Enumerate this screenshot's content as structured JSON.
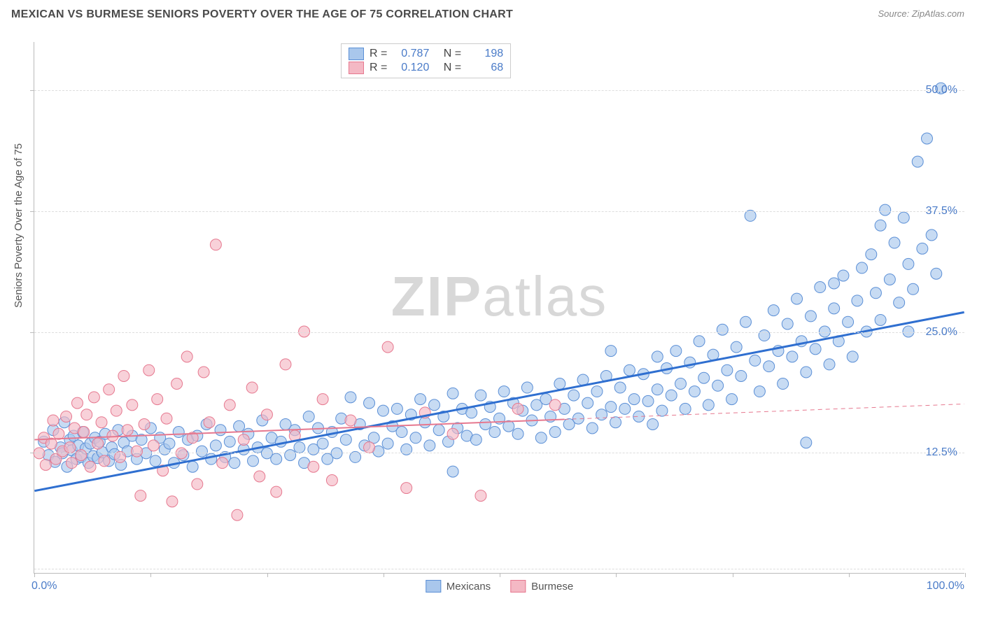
{
  "header": {
    "title": "MEXICAN VS BURMESE SENIORS POVERTY OVER THE AGE OF 75 CORRELATION CHART",
    "source_prefix": "Source: ",
    "source_name": "ZipAtlas.com"
  },
  "watermark": {
    "text1": "ZIP",
    "text2": "atlas"
  },
  "chart": {
    "type": "scatter",
    "background_color": "#ffffff",
    "grid_color": "#dddddd",
    "axis_color": "#bbbbbb",
    "ylabel": "Seniors Poverty Over the Age of 75",
    "ylabel_color": "#555555",
    "ylabel_fontsize": 15,
    "tick_label_color": "#4a7bc8",
    "tick_label_fontsize": 16,
    "xlim": [
      0,
      100
    ],
    "ylim": [
      0,
      55
    ],
    "x_axis_label_left": "0.0%",
    "x_axis_label_right": "100.0%",
    "x_tick_positions": [
      0,
      12.5,
      25,
      37.5,
      50,
      62.5,
      75,
      87.5,
      100
    ],
    "y_ticks": [
      {
        "v": 12.5,
        "label": "12.5%"
      },
      {
        "v": 25.0,
        "label": "25.0%"
      },
      {
        "v": 37.5,
        "label": "37.5%"
      },
      {
        "v": 50.0,
        "label": "50.0%"
      }
    ],
    "y_gridlines": [
      0.5,
      12.5,
      25.0,
      37.5,
      50.0
    ],
    "series": [
      {
        "name": "Mexicans",
        "marker_fill": "#a9c7ec",
        "marker_stroke": "#5b8fd6",
        "marker_opacity": 0.65,
        "marker_radius": 8,
        "trend_color": "#2f6fd0",
        "trend_width": 3,
        "trend_dash": "none",
        "trend": {
          "x1": 0,
          "y1": 8.5,
          "x2": 100,
          "y2": 27.0
        },
        "R": "0.787",
        "N": "198",
        "points": [
          [
            1,
            13.6
          ],
          [
            1.5,
            12.2
          ],
          [
            2,
            14.8
          ],
          [
            2.2,
            11.5
          ],
          [
            2.8,
            13.0
          ],
          [
            3,
            12.4
          ],
          [
            3.2,
            15.6
          ],
          [
            3.5,
            11.0
          ],
          [
            3.8,
            13.8
          ],
          [
            4,
            12.7
          ],
          [
            4.2,
            14.2
          ],
          [
            4.5,
            11.8
          ],
          [
            4.7,
            13.2
          ],
          [
            5,
            12.0
          ],
          [
            5.2,
            14.6
          ],
          [
            5.5,
            12.9
          ],
          [
            5.8,
            11.4
          ],
          [
            6,
            13.4
          ],
          [
            6.3,
            12.1
          ],
          [
            6.5,
            14.0
          ],
          [
            6.8,
            11.9
          ],
          [
            7,
            13.6
          ],
          [
            7.3,
            12.5
          ],
          [
            7.6,
            14.4
          ],
          [
            8,
            11.6
          ],
          [
            8.3,
            13.0
          ],
          [
            8.6,
            12.3
          ],
          [
            9,
            14.8
          ],
          [
            9.3,
            11.2
          ],
          [
            9.6,
            13.5
          ],
          [
            10,
            12.6
          ],
          [
            10.5,
            14.2
          ],
          [
            11,
            11.8
          ],
          [
            11.5,
            13.8
          ],
          [
            12,
            12.4
          ],
          [
            12.5,
            15.0
          ],
          [
            13,
            11.6
          ],
          [
            13.5,
            14.0
          ],
          [
            14,
            12.8
          ],
          [
            14.5,
            13.4
          ],
          [
            15,
            11.4
          ],
          [
            15.5,
            14.6
          ],
          [
            16,
            12.2
          ],
          [
            16.5,
            13.8
          ],
          [
            17,
            11.0
          ],
          [
            17.5,
            14.2
          ],
          [
            18,
            12.6
          ],
          [
            18.5,
            15.4
          ],
          [
            19,
            11.8
          ],
          [
            19.5,
            13.2
          ],
          [
            20,
            14.8
          ],
          [
            20.5,
            12.0
          ],
          [
            21,
            13.6
          ],
          [
            21.5,
            11.4
          ],
          [
            22,
            15.2
          ],
          [
            22.5,
            12.8
          ],
          [
            23,
            14.4
          ],
          [
            23.5,
            11.6
          ],
          [
            24,
            13.0
          ],
          [
            24.5,
            15.8
          ],
          [
            25,
            12.4
          ],
          [
            25.5,
            14.0
          ],
          [
            26,
            11.8
          ],
          [
            26.5,
            13.6
          ],
          [
            27,
            15.4
          ],
          [
            27.5,
            12.2
          ],
          [
            28,
            14.8
          ],
          [
            28.5,
            13.0
          ],
          [
            29,
            11.4
          ],
          [
            29.5,
            16.2
          ],
          [
            30,
            12.8
          ],
          [
            30.5,
            15.0
          ],
          [
            31,
            13.4
          ],
          [
            31.5,
            11.8
          ],
          [
            32,
            14.6
          ],
          [
            32.5,
            12.4
          ],
          [
            33,
            16.0
          ],
          [
            33.5,
            13.8
          ],
          [
            34,
            18.2
          ],
          [
            34.5,
            12.0
          ],
          [
            35,
            15.4
          ],
          [
            35.5,
            13.2
          ],
          [
            36,
            17.6
          ],
          [
            36.5,
            14.0
          ],
          [
            37,
            12.6
          ],
          [
            37.5,
            16.8
          ],
          [
            38,
            13.4
          ],
          [
            38.5,
            15.2
          ],
          [
            39,
            17.0
          ],
          [
            39.5,
            14.6
          ],
          [
            40,
            12.8
          ],
          [
            40.5,
            16.4
          ],
          [
            41,
            14.0
          ],
          [
            41.5,
            18.0
          ],
          [
            42,
            15.6
          ],
          [
            42.5,
            13.2
          ],
          [
            43,
            17.4
          ],
          [
            43.5,
            14.8
          ],
          [
            44,
            16.2
          ],
          [
            44.5,
            13.6
          ],
          [
            45,
            18.6
          ],
          [
            45,
            10.5
          ],
          [
            45.5,
            15.0
          ],
          [
            46,
            17.0
          ],
          [
            46.5,
            14.2
          ],
          [
            47,
            16.6
          ],
          [
            47.5,
            13.8
          ],
          [
            48,
            18.4
          ],
          [
            48.5,
            15.4
          ],
          [
            49,
            17.2
          ],
          [
            49.5,
            14.6
          ],
          [
            50,
            16.0
          ],
          [
            50.5,
            18.8
          ],
          [
            51,
            15.2
          ],
          [
            51.5,
            17.6
          ],
          [
            52,
            14.4
          ],
          [
            52.5,
            16.8
          ],
          [
            53,
            19.2
          ],
          [
            53.5,
            15.8
          ],
          [
            54,
            17.4
          ],
          [
            54.5,
            14.0
          ],
          [
            55,
            18.0
          ],
          [
            55.5,
            16.2
          ],
          [
            56,
            14.6
          ],
          [
            56.5,
            19.6
          ],
          [
            57,
            17.0
          ],
          [
            57.5,
            15.4
          ],
          [
            58,
            18.4
          ],
          [
            58.5,
            16.0
          ],
          [
            59,
            20.0
          ],
          [
            59.5,
            17.6
          ],
          [
            60,
            15.0
          ],
          [
            60.5,
            18.8
          ],
          [
            61,
            16.4
          ],
          [
            61.5,
            20.4
          ],
          [
            62,
            17.2
          ],
          [
            62,
            23.0
          ],
          [
            62.5,
            15.6
          ],
          [
            63,
            19.2
          ],
          [
            63.5,
            17.0
          ],
          [
            64,
            21.0
          ],
          [
            64.5,
            18.0
          ],
          [
            65,
            16.2
          ],
          [
            65.5,
            20.6
          ],
          [
            66,
            17.8
          ],
          [
            66.5,
            15.4
          ],
          [
            67,
            22.4
          ],
          [
            67,
            19.0
          ],
          [
            67.5,
            16.8
          ],
          [
            68,
            21.2
          ],
          [
            68.5,
            18.4
          ],
          [
            69,
            23.0
          ],
          [
            69.5,
            19.6
          ],
          [
            70,
            17.0
          ],
          [
            70.5,
            21.8
          ],
          [
            71,
            18.8
          ],
          [
            71.5,
            24.0
          ],
          [
            72,
            20.2
          ],
          [
            72.5,
            17.4
          ],
          [
            73,
            22.6
          ],
          [
            73.5,
            19.4
          ],
          [
            74,
            25.2
          ],
          [
            74.5,
            21.0
          ],
          [
            75,
            18.0
          ],
          [
            75.5,
            23.4
          ],
          [
            76,
            20.4
          ],
          [
            76.5,
            26.0
          ],
          [
            77,
            37.0
          ],
          [
            77.5,
            22.0
          ],
          [
            78,
            18.8
          ],
          [
            78.5,
            24.6
          ],
          [
            79,
            21.4
          ],
          [
            79.5,
            27.2
          ],
          [
            80,
            23.0
          ],
          [
            80.5,
            19.6
          ],
          [
            81,
            25.8
          ],
          [
            81.5,
            22.4
          ],
          [
            82,
            28.4
          ],
          [
            82.5,
            24.0
          ],
          [
            83,
            20.8
          ],
          [
            83,
            13.5
          ],
          [
            83.5,
            26.6
          ],
          [
            84,
            23.2
          ],
          [
            84.5,
            29.6
          ],
          [
            85,
            25.0
          ],
          [
            85.5,
            21.6
          ],
          [
            86,
            30.0
          ],
          [
            86,
            27.4
          ],
          [
            86.5,
            24.0
          ],
          [
            87,
            30.8
          ],
          [
            87.5,
            26.0
          ],
          [
            88,
            22.4
          ],
          [
            88.5,
            28.2
          ],
          [
            89,
            31.6
          ],
          [
            89.5,
            25.0
          ],
          [
            90,
            33.0
          ],
          [
            90.5,
            29.0
          ],
          [
            91,
            36.0
          ],
          [
            91,
            26.2
          ],
          [
            91.5,
            37.6
          ],
          [
            92,
            30.4
          ],
          [
            92.5,
            34.2
          ],
          [
            93,
            28.0
          ],
          [
            93.5,
            36.8
          ],
          [
            94,
            32.0
          ],
          [
            94,
            25.0
          ],
          [
            94.5,
            29.4
          ],
          [
            95,
            42.6
          ],
          [
            95.5,
            33.6
          ],
          [
            96,
            45.0
          ],
          [
            96.5,
            35.0
          ],
          [
            97,
            31.0
          ],
          [
            97.5,
            50.2
          ]
        ]
      },
      {
        "name": "Burmese",
        "marker_fill": "#f4b8c4",
        "marker_stroke": "#e6788f",
        "marker_opacity": 0.65,
        "marker_radius": 8,
        "trend_color": "#e6788f",
        "trend_width": 2,
        "trend_dash": "solid_then_dash",
        "trend_solid_end_x": 57,
        "trend": {
          "x1": 0,
          "y1": 13.8,
          "x2": 100,
          "y2": 17.5
        },
        "R": "0.120",
        "N": "68",
        "points": [
          [
            0.5,
            12.4
          ],
          [
            1,
            14.0
          ],
          [
            1.2,
            11.2
          ],
          [
            1.8,
            13.4
          ],
          [
            2,
            15.8
          ],
          [
            2.3,
            11.8
          ],
          [
            2.6,
            14.4
          ],
          [
            3,
            12.6
          ],
          [
            3.4,
            16.2
          ],
          [
            3.8,
            13.0
          ],
          [
            4,
            11.4
          ],
          [
            4.3,
            15.0
          ],
          [
            4.6,
            17.6
          ],
          [
            5,
            12.2
          ],
          [
            5.3,
            14.6
          ],
          [
            5.6,
            16.4
          ],
          [
            6,
            11.0
          ],
          [
            6.4,
            18.2
          ],
          [
            6.8,
            13.4
          ],
          [
            7.2,
            15.6
          ],
          [
            7.5,
            11.6
          ],
          [
            8,
            19.0
          ],
          [
            8.4,
            14.2
          ],
          [
            8.8,
            16.8
          ],
          [
            9.2,
            12.0
          ],
          [
            9.6,
            20.4
          ],
          [
            10,
            14.8
          ],
          [
            10.5,
            17.4
          ],
          [
            11,
            12.6
          ],
          [
            11.4,
            8.0
          ],
          [
            11.8,
            15.4
          ],
          [
            12.3,
            21.0
          ],
          [
            12.8,
            13.2
          ],
          [
            13.2,
            18.0
          ],
          [
            13.8,
            10.6
          ],
          [
            14.2,
            16.0
          ],
          [
            14.8,
            7.4
          ],
          [
            15.3,
            19.6
          ],
          [
            15.8,
            12.4
          ],
          [
            16.4,
            22.4
          ],
          [
            17,
            14.0
          ],
          [
            17.5,
            9.2
          ],
          [
            18.2,
            20.8
          ],
          [
            18.8,
            15.6
          ],
          [
            19.5,
            34.0
          ],
          [
            20.2,
            11.4
          ],
          [
            21,
            17.4
          ],
          [
            21.8,
            6.0
          ],
          [
            22.5,
            13.8
          ],
          [
            23.4,
            19.2
          ],
          [
            24.2,
            10.0
          ],
          [
            25,
            16.4
          ],
          [
            26,
            8.4
          ],
          [
            27,
            21.6
          ],
          [
            28,
            14.2
          ],
          [
            29,
            25.0
          ],
          [
            30,
            11.0
          ],
          [
            31,
            18.0
          ],
          [
            32,
            9.6
          ],
          [
            34,
            15.8
          ],
          [
            36,
            13.0
          ],
          [
            38,
            23.4
          ],
          [
            40,
            8.8
          ],
          [
            42,
            16.6
          ],
          [
            45,
            14.4
          ],
          [
            48,
            8.0
          ],
          [
            52,
            17.0
          ],
          [
            56,
            17.4
          ]
        ]
      }
    ],
    "legend_top": {
      "labels": {
        "R": "R =",
        "N": "N ="
      }
    },
    "legend_bottom": {
      "items": [
        "Mexicans",
        "Burmese"
      ]
    }
  }
}
